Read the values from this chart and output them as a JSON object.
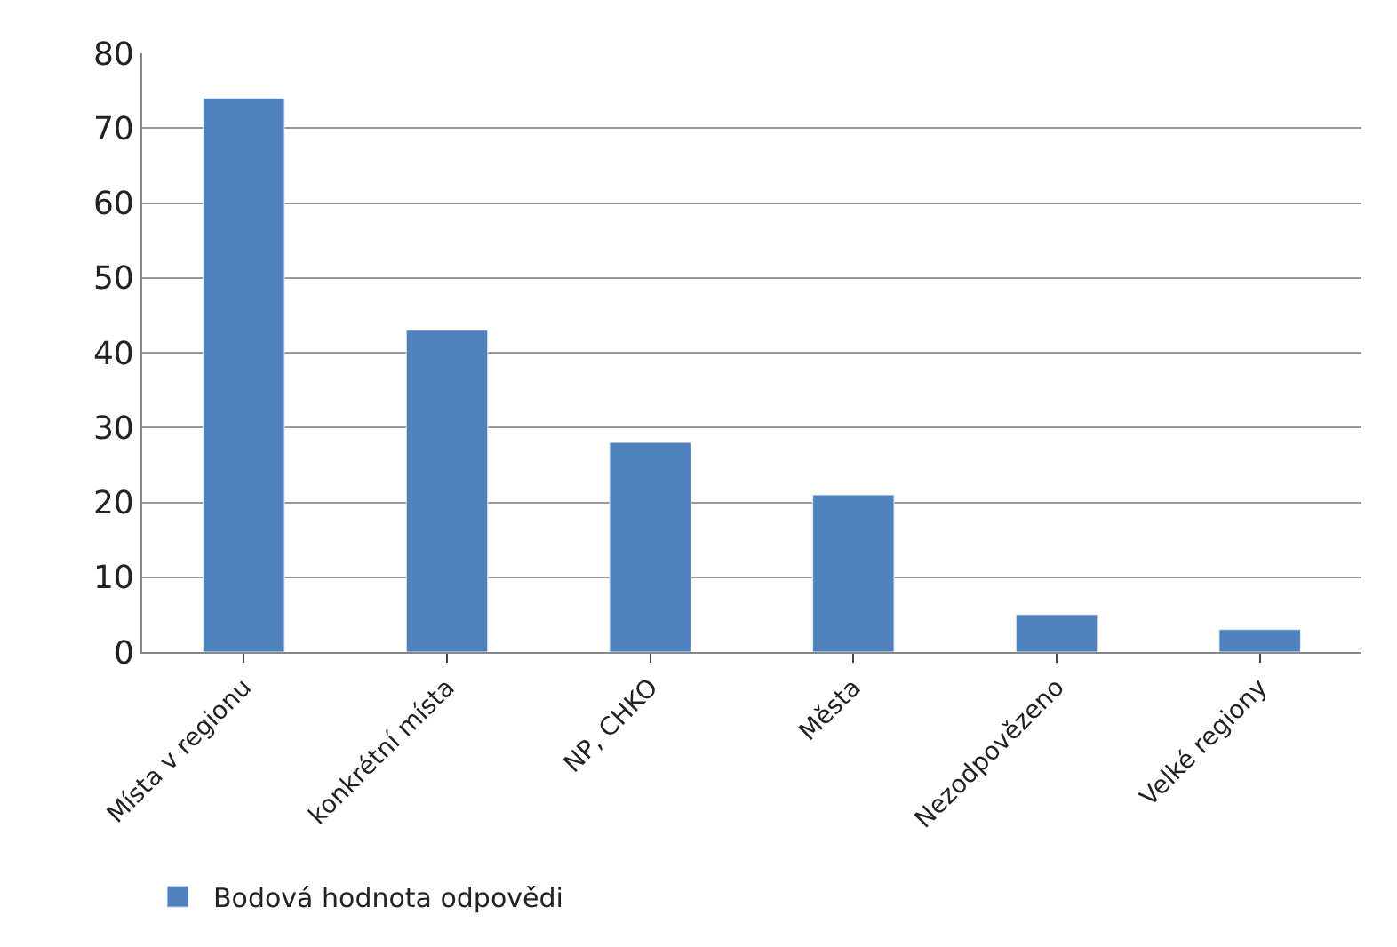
{
  "chart_data": {
    "type": "bar",
    "categories": [
      "Místa v regionu",
      "konkrétní místa",
      "NP, CHKO",
      "Města",
      "Nezodpovězeno",
      "Velké regiony"
    ],
    "series": [
      {
        "name": "Bodová hodnota odpovědi",
        "color": "#4f81bd",
        "values": [
          74,
          43,
          28,
          21,
          5,
          3
        ]
      }
    ],
    "ylim": [
      0,
      80
    ],
    "yticks": [
      0,
      10,
      20,
      30,
      40,
      50,
      60,
      70,
      80
    ],
    "grid": "y",
    "legend": "bottom left"
  }
}
